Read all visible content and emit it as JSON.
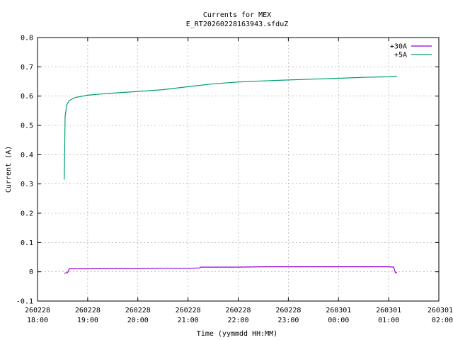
{
  "chart_data": {
    "type": "line",
    "title": "Currents for MEX",
    "subtitle": "E_RT20260228163943.sfduZ",
    "xlabel": "Time (yymmdd HH:MM)",
    "ylabel": "Current (A)",
    "ylim": [
      -0.1,
      0.8
    ],
    "yticks": [
      "-0.1",
      "0",
      "0.1",
      "0.2",
      "0.3",
      "0.4",
      "0.5",
      "0.6",
      "0.7",
      "0.8"
    ],
    "xticks": [
      {
        "date": "260228",
        "time": "18:00"
      },
      {
        "date": "260228",
        "time": "19:00"
      },
      {
        "date": "260228",
        "time": "20:00"
      },
      {
        "date": "260228",
        "time": "21:00"
      },
      {
        "date": "260228",
        "time": "22:00"
      },
      {
        "date": "260228",
        "time": "23:00"
      },
      {
        "date": "260301",
        "time": "00:00"
      },
      {
        "date": "260301",
        "time": "01:00"
      },
      {
        "date": "260301",
        "time": "02:00"
      }
    ],
    "xlim": [
      "2026-02-28 18:00",
      "2026-03-01 02:00"
    ],
    "grid": true,
    "legend": "top-right",
    "series": [
      {
        "name": "+30A",
        "color": "#9400d3",
        "points": [
          [
            "2026-02-28 18:32",
            -0.005
          ],
          [
            "2026-02-28 18:36",
            -0.003
          ],
          [
            "2026-02-28 18:38",
            0.01
          ],
          [
            "2026-02-28 19:00",
            0.01
          ],
          [
            "2026-02-28 19:30",
            0.011
          ],
          [
            "2026-02-28 20:00",
            0.011
          ],
          [
            "2026-02-28 20:30",
            0.012
          ],
          [
            "2026-02-28 21:00",
            0.012
          ],
          [
            "2026-02-28 21:14",
            0.013
          ],
          [
            "2026-02-28 21:15",
            0.016
          ],
          [
            "2026-02-28 21:40",
            0.016
          ],
          [
            "2026-02-28 22:00",
            0.016
          ],
          [
            "2026-02-28 22:30",
            0.017
          ],
          [
            "2026-02-28 23:00",
            0.017
          ],
          [
            "2026-02-28 23:30",
            0.017
          ],
          [
            "2026-03-01 00:00",
            0.017
          ],
          [
            "2026-03-01 00:30",
            0.017
          ],
          [
            "2026-03-01 01:00",
            0.017
          ],
          [
            "2026-03-01 01:06",
            0.016
          ],
          [
            "2026-03-01 01:08",
            -0.003
          ],
          [
            "2026-03-01 01:10",
            -0.003
          ]
        ]
      },
      {
        "name": "+5A",
        "color": "#009e73",
        "points": [
          [
            "2026-02-28 18:32",
            0.315
          ],
          [
            "2026-02-28 18:33",
            0.53
          ],
          [
            "2026-02-28 18:35",
            0.57
          ],
          [
            "2026-02-28 18:38",
            0.585
          ],
          [
            "2026-02-28 18:45",
            0.595
          ],
          [
            "2026-02-28 19:00",
            0.603
          ],
          [
            "2026-02-28 19:15",
            0.607
          ],
          [
            "2026-02-28 19:30",
            0.61
          ],
          [
            "2026-02-28 20:00",
            0.616
          ],
          [
            "2026-02-28 20:30",
            0.622
          ],
          [
            "2026-02-28 21:00",
            0.632
          ],
          [
            "2026-02-28 21:30",
            0.642
          ],
          [
            "2026-02-28 22:00",
            0.648
          ],
          [
            "2026-02-28 22:30",
            0.652
          ],
          [
            "2026-02-28 23:00",
            0.655
          ],
          [
            "2026-02-28 23:30",
            0.658
          ],
          [
            "2026-03-01 00:00",
            0.661
          ],
          [
            "2026-03-01 00:30",
            0.664
          ],
          [
            "2026-03-01 01:00",
            0.666
          ],
          [
            "2026-03-01 01:10",
            0.668
          ]
        ]
      }
    ]
  }
}
